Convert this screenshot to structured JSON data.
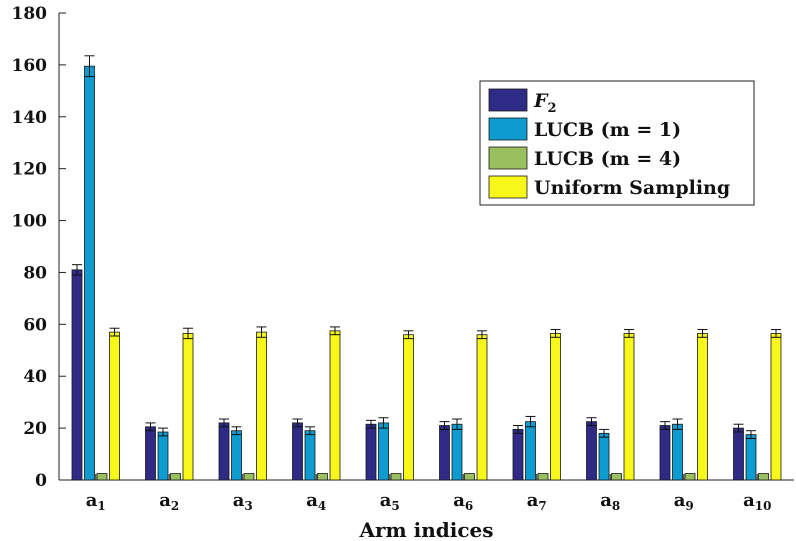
{
  "chart_data": {
    "type": "bar",
    "xlabel": "Arm indices",
    "ylabel": "",
    "ylim": [
      0,
      180
    ],
    "yticks": [
      0,
      20,
      40,
      60,
      80,
      100,
      120,
      140,
      160,
      180
    ],
    "categories": [
      {
        "base": "a",
        "sub": "1"
      },
      {
        "base": "a",
        "sub": "2"
      },
      {
        "base": "a",
        "sub": "3"
      },
      {
        "base": "a",
        "sub": "4"
      },
      {
        "base": "a",
        "sub": "5"
      },
      {
        "base": "a",
        "sub": "6"
      },
      {
        "base": "a",
        "sub": "7"
      },
      {
        "base": "a",
        "sub": "8"
      },
      {
        "base": "a",
        "sub": "9"
      },
      {
        "base": "a",
        "sub": "10"
      }
    ],
    "series": [
      {
        "name": "F",
        "name_sub": "2",
        "color": "#2E2A86",
        "values": [
          81,
          20.5,
          22,
          22,
          21.5,
          21,
          19.5,
          22.5,
          21,
          20
        ],
        "errors": [
          2,
          1.5,
          1.5,
          1.5,
          1.5,
          1.5,
          1.5,
          1.5,
          1.5,
          1.5
        ]
      },
      {
        "name": "LUCB (m = 1)",
        "color": "#0E9BD0",
        "values": [
          159.5,
          18.5,
          19,
          19,
          22,
          21.5,
          22.5,
          18,
          21.5,
          17.5
        ],
        "errors": [
          4,
          1.5,
          1.5,
          1.5,
          2,
          2,
          2,
          1.5,
          2,
          1.5
        ]
      },
      {
        "name": "LUCB (m = 4)",
        "color": "#9ABF5E",
        "values": [
          2.5,
          2.5,
          2.5,
          2.5,
          2.5,
          2.5,
          2.5,
          2.5,
          2.5,
          2.5
        ],
        "errors": [
          0,
          0,
          0,
          0,
          0,
          0,
          0,
          0,
          0,
          0
        ]
      },
      {
        "name": "Uniform Sampling",
        "color": "#F7F71A",
        "values": [
          57,
          56.5,
          57,
          57.5,
          56,
          56,
          56.5,
          56.5,
          56.5,
          56.5
        ],
        "errors": [
          1.5,
          2,
          2,
          1.5,
          1.5,
          1.5,
          1.5,
          1.5,
          1.5,
          1.5
        ]
      }
    ],
    "legend": {
      "position": "top-right"
    },
    "grid": false
  }
}
